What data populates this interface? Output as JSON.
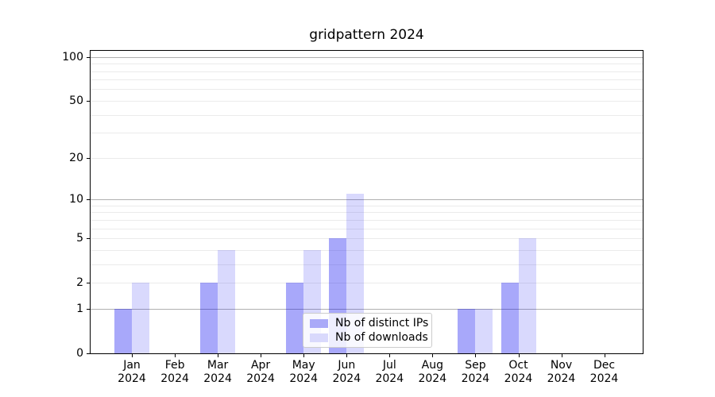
{
  "chart_data": {
    "type": "bar",
    "title": "gridpattern 2024",
    "categories": [
      "Jan",
      "Feb",
      "Mar",
      "Apr",
      "May",
      "Jun",
      "Jul",
      "Aug",
      "Sep",
      "Oct",
      "Nov",
      "Dec"
    ],
    "x_tick_line2": "2024",
    "series": [
      {
        "name": "Nb of distinct IPs",
        "values": [
          1,
          0,
          2,
          0,
          2,
          5,
          0,
          0,
          1,
          2,
          0,
          0
        ],
        "fill": "rgba(0,0,240,0.34)",
        "legend_color": "#a9a9f8"
      },
      {
        "name": "Nb of downloads",
        "values": [
          2,
          0,
          4,
          0,
          4,
          11,
          0,
          0,
          1,
          5,
          0,
          0
        ],
        "fill": "rgba(0,0,240,0.15)",
        "legend_color": "#d9d9fc"
      }
    ],
    "yscale": "log10(1+v)",
    "ylim": [
      0,
      110
    ],
    "yticks": [
      0,
      1,
      2,
      5,
      10,
      20,
      50,
      100
    ],
    "grid_major": [
      1,
      10,
      100
    ],
    "grid_minor": [
      2,
      3,
      4,
      5,
      6,
      7,
      8,
      9,
      20,
      30,
      40,
      50,
      60,
      70,
      80,
      90
    ],
    "legend_position": "lower center",
    "colors": {
      "major_grid": "#b0b0b0",
      "minor_grid": "#ebebeb",
      "spine": "#000000",
      "background": "#ffffff"
    }
  }
}
